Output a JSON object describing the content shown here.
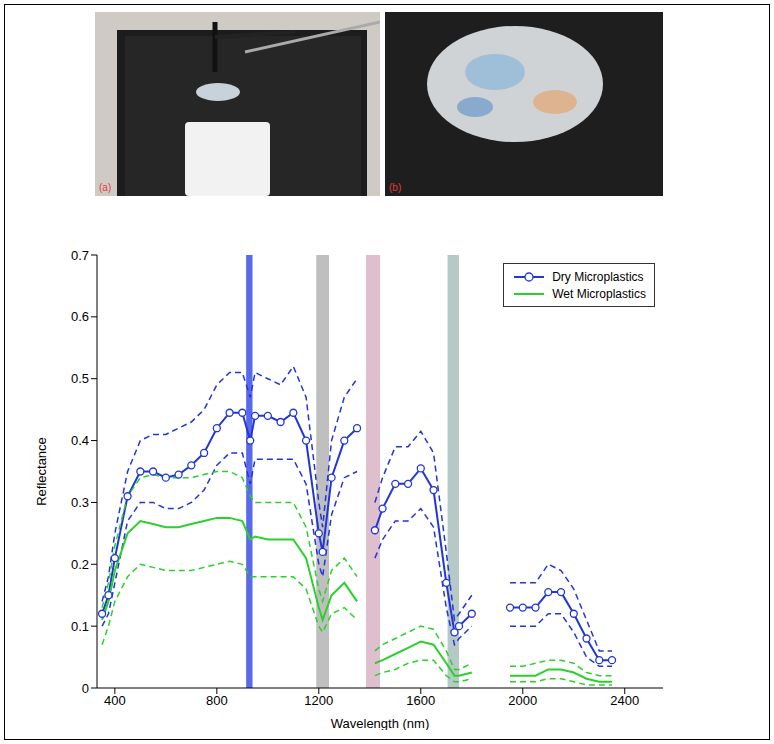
{
  "photos": [
    {
      "label": "(a)"
    },
    {
      "label": "(b)"
    }
  ],
  "chart_data": {
    "type": "line",
    "x_label": "Wavelength (nm)",
    "y_label": "Reflectance",
    "x": [
      350,
      375,
      400,
      450,
      500,
      550,
      600,
      650,
      700,
      750,
      800,
      850,
      900,
      931,
      950,
      1000,
      1050,
      1100,
      1150,
      1200,
      1215,
      1250,
      1300,
      1350,
      1400,
      1420,
      1450,
      1500,
      1550,
      1600,
      1650,
      1700,
      1732,
      1750,
      1800,
      1850,
      1950,
      2000,
      2050,
      2100,
      2150,
      2200,
      2250,
      2300,
      2350
    ],
    "xlim": [
      330,
      2550
    ],
    "xticks": [
      400,
      800,
      1200,
      1600,
      2000,
      2400
    ],
    "ylim": [
      0,
      0.7
    ],
    "yticks": [
      0,
      0.1,
      0.2,
      0.3,
      0.4,
      0.5,
      0.6,
      0.7
    ],
    "grid": false,
    "legend": "upper right",
    "bands": [
      {
        "x_range": [
          915,
          940
        ],
        "color": "#3b4fe6"
      },
      {
        "x_range": [
          1190,
          1240
        ],
        "color": "#b4b4b4"
      },
      {
        "x_range": [
          1385,
          1440
        ],
        "color": "#d9b3c4"
      },
      {
        "x_range": [
          1705,
          1750
        ],
        "color": "#a9c0bd"
      }
    ],
    "series": [
      {
        "name": "Dry Microplastics",
        "color": "#2036d8",
        "marker": "circle",
        "line_style": "solid",
        "values": [
          0.12,
          0.15,
          0.21,
          0.31,
          0.35,
          0.35,
          0.34,
          0.345,
          0.36,
          0.38,
          0.42,
          0.445,
          0.445,
          0.4,
          0.44,
          0.44,
          0.43,
          0.445,
          0.4,
          0.25,
          0.22,
          0.34,
          0.4,
          0.42,
          null,
          0.255,
          0.29,
          0.33,
          0.33,
          0.355,
          0.32,
          0.17,
          0.09,
          0.1,
          0.12,
          null,
          0.13,
          0.13,
          0.13,
          0.155,
          0.155,
          0.12,
          0.08,
          0.045,
          0.045
        ],
        "upper": [
          0.14,
          0.18,
          0.25,
          0.35,
          0.4,
          0.41,
          0.41,
          0.42,
          0.43,
          0.45,
          0.49,
          0.51,
          0.51,
          0.47,
          0.51,
          0.5,
          0.49,
          0.52,
          0.47,
          0.3,
          0.26,
          0.4,
          0.47,
          0.5,
          null,
          0.3,
          0.34,
          0.39,
          0.39,
          0.415,
          0.38,
          0.22,
          0.11,
          0.12,
          0.15,
          null,
          0.17,
          0.17,
          0.17,
          0.2,
          0.19,
          0.16,
          0.11,
          0.06,
          0.06
        ],
        "lower": [
          0.1,
          0.12,
          0.17,
          0.27,
          0.3,
          0.3,
          0.29,
          0.29,
          0.3,
          0.32,
          0.36,
          0.38,
          0.38,
          0.33,
          0.37,
          0.37,
          0.37,
          0.37,
          0.33,
          0.2,
          0.18,
          0.28,
          0.34,
          0.35,
          null,
          0.21,
          0.24,
          0.27,
          0.27,
          0.29,
          0.26,
          0.13,
          0.07,
          0.08,
          0.1,
          null,
          0.1,
          0.1,
          0.1,
          0.12,
          0.12,
          0.09,
          0.05,
          0.035,
          0.035
        ]
      },
      {
        "name": "Wet Microplastics",
        "color": "#2bd12b",
        "marker": "none",
        "line_style": "solid",
        "values": [
          0.11,
          0.14,
          0.19,
          0.25,
          0.27,
          0.265,
          0.26,
          0.26,
          0.265,
          0.27,
          0.275,
          0.275,
          0.27,
          0.24,
          0.245,
          0.24,
          0.24,
          0.24,
          0.21,
          0.13,
          0.11,
          0.15,
          0.17,
          0.14,
          null,
          0.04,
          0.045,
          0.055,
          0.065,
          0.075,
          0.07,
          0.04,
          0.02,
          0.02,
          0.025,
          null,
          0.02,
          0.02,
          0.02,
          0.03,
          0.03,
          0.025,
          0.015,
          0.01,
          0.01
        ],
        "upper": [
          0.13,
          0.17,
          0.23,
          0.31,
          0.34,
          0.345,
          0.34,
          0.34,
          0.34,
          0.345,
          0.35,
          0.35,
          0.34,
          0.31,
          0.3,
          0.3,
          0.3,
          0.3,
          0.26,
          0.16,
          0.14,
          0.19,
          0.21,
          0.18,
          null,
          0.06,
          0.07,
          0.08,
          0.09,
          0.1,
          0.095,
          0.06,
          0.03,
          0.03,
          0.04,
          null,
          0.035,
          0.035,
          0.04,
          0.045,
          0.045,
          0.04,
          0.025,
          0.02,
          0.02
        ],
        "lower": [
          0.07,
          0.1,
          0.14,
          0.18,
          0.2,
          0.195,
          0.19,
          0.19,
          0.19,
          0.195,
          0.2,
          0.205,
          0.2,
          0.18,
          0.18,
          0.18,
          0.18,
          0.18,
          0.16,
          0.1,
          0.09,
          0.12,
          0.13,
          0.11,
          null,
          0.02,
          0.025,
          0.03,
          0.04,
          0.045,
          0.045,
          0.02,
          0.01,
          0.01,
          0.015,
          null,
          0.01,
          0.01,
          0.01,
          0.015,
          0.015,
          0.01,
          0.005,
          0.005,
          0.005
        ]
      }
    ]
  }
}
